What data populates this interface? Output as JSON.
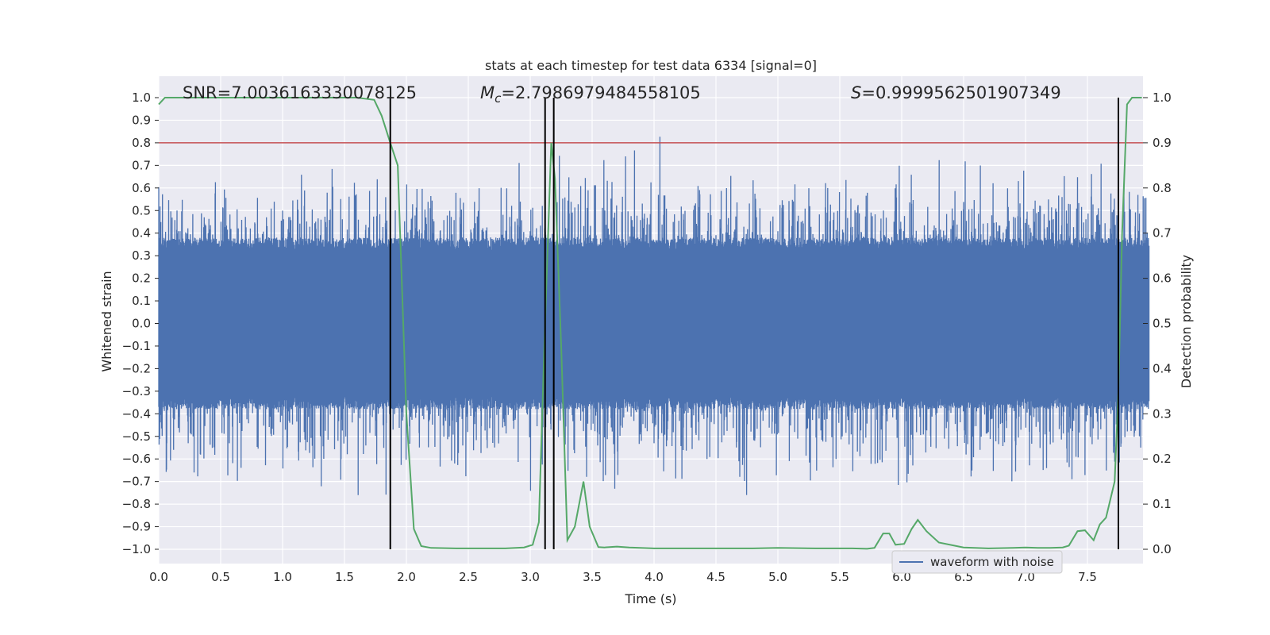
{
  "chart_data": {
    "type": "line",
    "title": "stats at each timestep for test data 6334 [signal=0]",
    "xlabel": "Time (s)",
    "ylabel": "Whitened strain",
    "y2label": "Detection probability",
    "xlim": [
      0.0,
      8.0
    ],
    "ylim": [
      -1.08,
      1.08
    ],
    "y2lim": [
      -0.05,
      1.05
    ],
    "x_ticks": [
      0.0,
      0.5,
      1.0,
      1.5,
      2.0,
      2.5,
      3.0,
      3.5,
      4.0,
      4.5,
      5.0,
      5.5,
      6.0,
      6.5,
      7.0,
      7.5
    ],
    "x_tick_labels": [
      "0.0",
      "0.5",
      "1.0",
      "1.5",
      "2.0",
      "2.5",
      "3.0",
      "3.5",
      "4.0",
      "4.5",
      "5.0",
      "5.5",
      "6.0",
      "6.5",
      "7.0",
      "7.5"
    ],
    "y_ticks": [
      1.0,
      0.9,
      0.8,
      0.7,
      0.6,
      0.5,
      0.4,
      0.3,
      0.2,
      0.1,
      0.0,
      -0.1,
      -0.2,
      -0.3,
      -0.4,
      -0.5,
      -0.6,
      -0.7,
      -0.8,
      -0.9,
      -1.0
    ],
    "y_tick_labels": [
      "1.0",
      "0.9",
      "0.8",
      "0.7",
      "0.6",
      "0.5",
      "0.4",
      "0.3",
      "0.2",
      "0.1",
      "0.0",
      "−0.1",
      "−0.2",
      "−0.3",
      "−0.4",
      "−0.5",
      "−0.6",
      "−0.7",
      "−0.8",
      "−0.9",
      "−1.0"
    ],
    "y2_ticks": [
      1.0,
      0.9,
      0.8,
      0.7,
      0.6,
      0.5,
      0.4,
      0.3,
      0.2,
      0.1,
      0.0
    ],
    "y2_tick_labels": [
      "1.0",
      "0.9",
      "0.8",
      "0.7",
      "0.6",
      "0.5",
      "0.4",
      "0.3",
      "0.2",
      "0.1",
      "0.0"
    ],
    "grid": true,
    "legend": {
      "placement": "lower-right",
      "entries": [
        {
          "label": "waveform with noise",
          "color": "#4c72b0"
        }
      ]
    },
    "annotations": {
      "snr": "SNR=7.0036163330078125",
      "mc_symbol": "M",
      "mc_sub": "c",
      "mc_value": "=2.7986979484558105",
      "s_symbol": "S",
      "s_value": "=0.9999562501907349"
    },
    "series": [
      {
        "name": "waveform with noise",
        "kind": "noise-waveform",
        "color": "#4c72b0",
        "axis": "left",
        "typical_envelope": [
          -0.38,
          0.38
        ],
        "peak_range": [
          -0.98,
          0.87
        ]
      },
      {
        "name": "",
        "color": "#55a868",
        "axis": "right",
        "x": [
          0.0,
          0.05,
          0.1,
          0.2,
          0.4,
          0.6,
          0.8,
          1.0,
          1.2,
          1.4,
          1.6,
          1.74,
          1.8,
          1.87,
          1.93,
          2.0,
          2.06,
          2.12,
          2.2,
          2.4,
          2.6,
          2.8,
          2.95,
          3.02,
          3.07,
          3.12,
          3.17,
          3.2,
          3.25,
          3.3,
          3.36,
          3.43,
          3.48,
          3.55,
          3.6,
          3.7,
          3.8,
          4.0,
          4.2,
          4.5,
          4.8,
          5.0,
          5.3,
          5.6,
          5.72,
          5.78,
          5.85,
          5.9,
          5.95,
          6.02,
          6.08,
          6.13,
          6.2,
          6.3,
          6.5,
          6.7,
          6.9,
          7.0,
          7.1,
          7.2,
          7.3,
          7.35,
          7.42,
          7.48,
          7.55,
          7.6,
          7.65,
          7.72,
          7.75,
          7.78,
          7.82,
          7.86,
          7.9,
          7.94
        ],
        "y": [
          0.985,
          1.0,
          1.0,
          1.0,
          1.0,
          1.0,
          1.0,
          1.0,
          1.0,
          1.0,
          1.0,
          0.995,
          0.96,
          0.9,
          0.85,
          0.3,
          0.045,
          0.007,
          0.003,
          0.002,
          0.002,
          0.002,
          0.004,
          0.01,
          0.06,
          0.5,
          0.9,
          0.82,
          0.45,
          0.02,
          0.05,
          0.15,
          0.05,
          0.005,
          0.004,
          0.006,
          0.004,
          0.002,
          0.002,
          0.002,
          0.002,
          0.003,
          0.002,
          0.002,
          0.001,
          0.003,
          0.035,
          0.035,
          0.01,
          0.012,
          0.045,
          0.065,
          0.04,
          0.015,
          0.004,
          0.002,
          0.003,
          0.004,
          0.003,
          0.003,
          0.004,
          0.008,
          0.04,
          0.042,
          0.02,
          0.055,
          0.07,
          0.15,
          0.35,
          0.7,
          0.985,
          1.0,
          1.0,
          1.0
        ]
      }
    ],
    "hlines": [
      {
        "y": 0.9,
        "axis": "right",
        "color": "#c44e52"
      }
    ],
    "vlines": [
      1.87,
      3.12,
      3.19,
      7.75
    ],
    "vline_span": [
      0.0,
      1.0
    ],
    "colors": {
      "background": "#eaeaf2",
      "grid": "#ffffff",
      "waveform": "#4c72b0",
      "probability": "#55a868",
      "threshold": "#c44e52",
      "vline": "#000000"
    }
  }
}
